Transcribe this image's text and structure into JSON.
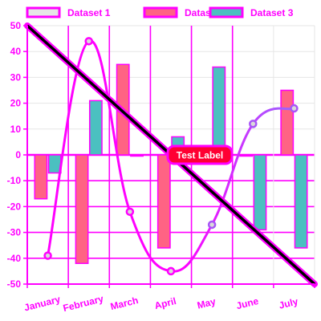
{
  "chart_data": {
    "type": "bar",
    "title": "",
    "xlabel": "",
    "ylabel": "",
    "categories": [
      "January",
      "February",
      "March",
      "April",
      "May",
      "June",
      "July"
    ],
    "ylim": [
      -50,
      50
    ],
    "yticks": [
      50,
      40,
      30,
      20,
      10,
      0,
      -10,
      -20,
      -30,
      -40,
      -50
    ],
    "legend_position": "top",
    "series": [
      {
        "name": "Dataset 1",
        "type": "line",
        "smooth": true,
        "values": [
          -39,
          44,
          -22,
          -45,
          -27,
          12,
          18
        ],
        "color": "#ff00ff",
        "point_fill": "#d9d9d9",
        "legend_fill": "#e6e6e6"
      },
      {
        "name": "Dataset 2",
        "type": "bar",
        "values": [
          -17,
          -42,
          35,
          -36,
          0,
          0,
          25
        ],
        "color": "#ff6384",
        "border": "#ff00ff"
      },
      {
        "name": "Dataset 3",
        "type": "bar",
        "values": [
          -7,
          21,
          0,
          7,
          34,
          -29,
          -36
        ],
        "color": "#4bc0c0",
        "border": "#ff00ff"
      }
    ],
    "annotations": [
      {
        "type": "line",
        "from": {
          "category": "January",
          "value": 50
        },
        "to": {
          "category": "July",
          "value": -50
        },
        "color": "#000000",
        "outline": "#ff00ff"
      },
      {
        "type": "label",
        "text": "Test Label",
        "value": 0,
        "background": "#ff0033",
        "border": "#ff00ff",
        "text_color": "#ffffff"
      }
    ],
    "colors": {
      "grid": "#ff00ff",
      "grid_light": "#e6e6e6",
      "ticks": "#ff00ff",
      "zero_line": "#ff00ff"
    }
  }
}
